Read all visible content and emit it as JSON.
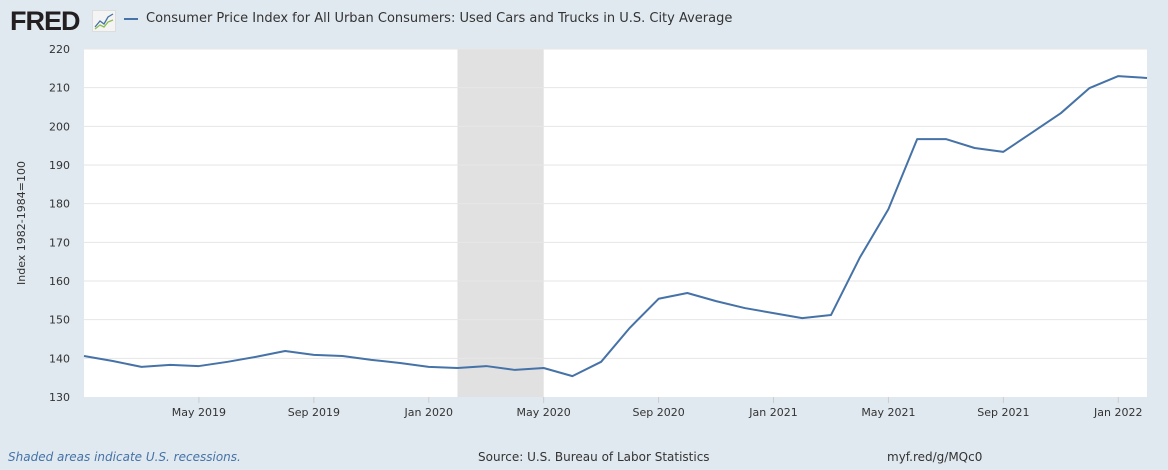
{
  "header": {
    "logo": "FRED",
    "legend_label": "Consumer Price Index for All Urban Consumers: Used Cars and Trucks in U.S. City Average"
  },
  "footer": {
    "recession_note": "Shaded areas indicate U.S. recessions.",
    "source": "Source: U.S. Bureau of Labor Statistics",
    "link": "myf.red/g/MQc0"
  },
  "chart_data": {
    "type": "line",
    "title": "",
    "ylabel": "Index 1982-1984=100",
    "ylim": [
      130,
      220
    ],
    "yticks": [
      130,
      140,
      150,
      160,
      170,
      180,
      190,
      200,
      210,
      220
    ],
    "xlim": [
      "2019-01",
      "2022-02"
    ],
    "xticks": [
      {
        "date": "2019-05",
        "label": "May 2019"
      },
      {
        "date": "2019-09",
        "label": "Sep 2019"
      },
      {
        "date": "2020-01",
        "label": "Jan 2020"
      },
      {
        "date": "2020-05",
        "label": "May 2020"
      },
      {
        "date": "2020-09",
        "label": "Sep 2020"
      },
      {
        "date": "2021-01",
        "label": "Jan 2021"
      },
      {
        "date": "2021-05",
        "label": "May 2021"
      },
      {
        "date": "2021-09",
        "label": "Sep 2021"
      },
      {
        "date": "2022-01",
        "label": "Jan 2022"
      }
    ],
    "grid": true,
    "color": "#4572a7",
    "recession": {
      "start": "2020-02",
      "end": "2020-04",
      "color": "#e1e1e1"
    },
    "series": [
      {
        "name": "Consumer Price Index for All Urban Consumers: Used Cars and Trucks in U.S. City Average",
        "x": [
          "2019-01",
          "2019-02",
          "2019-03",
          "2019-04",
          "2019-05",
          "2019-06",
          "2019-07",
          "2019-08",
          "2019-09",
          "2019-10",
          "2019-11",
          "2019-12",
          "2020-01",
          "2020-02",
          "2020-03",
          "2020-04",
          "2020-05",
          "2020-06",
          "2020-07",
          "2020-08",
          "2020-09",
          "2020-10",
          "2020-11",
          "2020-12",
          "2021-01",
          "2021-02",
          "2021-03",
          "2021-04",
          "2021-05",
          "2021-06",
          "2021-07",
          "2021-08",
          "2021-09",
          "2021-10",
          "2021-11",
          "2021-12",
          "2022-01",
          "2022-02"
        ],
        "values": [
          140.6,
          139.3,
          137.8,
          138.3,
          138.0,
          139.1,
          140.4,
          141.9,
          140.9,
          140.6,
          139.6,
          138.8,
          137.8,
          137.5,
          138.0,
          137.0,
          137.5,
          135.4,
          139.1,
          147.9,
          155.4,
          156.9,
          154.8,
          153.0,
          151.7,
          150.4,
          151.2,
          166.0,
          178.6,
          196.7,
          196.7,
          194.4,
          193.4,
          198.4,
          203.4,
          209.9,
          213.0,
          212.5
        ]
      }
    ]
  }
}
